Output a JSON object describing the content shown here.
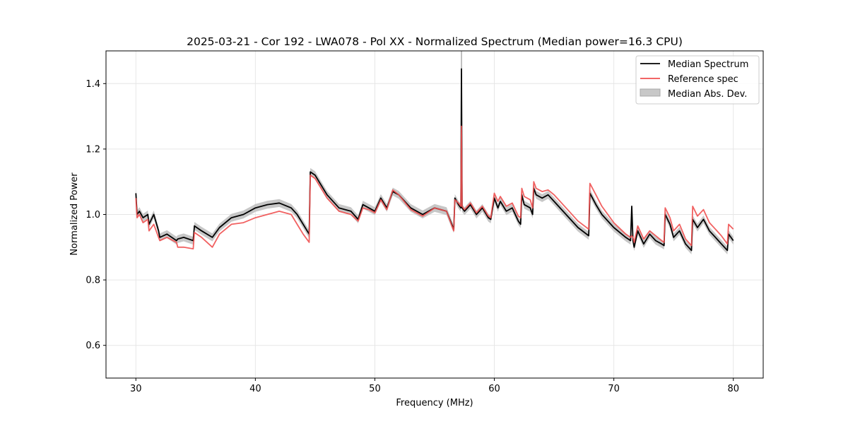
{
  "chart_data": {
    "type": "line",
    "title": "2025-03-21 - Cor 192 - LWA078 - Pol XX - Normalized Spectrum (Median power=16.3 CPU)",
    "xlabel": "Frequency (MHz)",
    "ylabel": "Normalized Power",
    "xlim": [
      27.5,
      82.5
    ],
    "ylim": [
      0.5,
      1.5
    ],
    "xticks": [
      30,
      40,
      50,
      60,
      70,
      80
    ],
    "yticks": [
      0.6,
      0.8,
      1.0,
      1.2,
      1.4
    ],
    "xtick_labels": [
      "30",
      "40",
      "50",
      "60",
      "70",
      "80"
    ],
    "ytick_labels": [
      "0.6",
      "0.8",
      "1.0",
      "1.2",
      "1.4"
    ],
    "grid": true,
    "legend_position": "top-right",
    "legend": [
      "Median Spectrum",
      "Reference spec",
      "Median Abs. Dev."
    ],
    "colors": {
      "median": "#000000",
      "reference": "#f05050",
      "mad": "#bdbdbd",
      "grid": "#e6e6e6"
    },
    "band_halfwidth": 0.012,
    "series": [
      {
        "name": "Median Spectrum",
        "x": [
          30.0,
          30.1,
          30.3,
          30.6,
          31.0,
          31.1,
          31.5,
          31.9,
          32.0,
          32.6,
          33.4,
          33.5,
          34.0,
          34.8,
          34.9,
          35.5,
          36.4,
          37.0,
          38.0,
          39.0,
          40.0,
          41.0,
          42.0,
          43.0,
          43.5,
          44.0,
          44.5,
          44.6,
          45.0,
          46.0,
          47.0,
          48.0,
          48.6,
          49.0,
          49.5,
          50.0,
          50.5,
          51.0,
          51.5,
          52.0,
          53.0,
          54.0,
          55.0,
          56.0,
          56.6,
          56.7,
          57.0,
          57.2,
          57.25,
          57.3,
          57.5,
          58.0,
          58.5,
          59.0,
          59.5,
          59.7,
          60.0,
          60.3,
          60.5,
          61.0,
          61.5,
          62.0,
          62.2,
          62.3,
          62.5,
          63.0,
          63.2,
          63.3,
          63.5,
          64.0,
          64.5,
          65.0,
          66.0,
          67.0,
          67.9,
          68.0,
          68.5,
          69.0,
          70.0,
          71.0,
          71.4,
          71.5,
          71.6,
          71.7,
          72.0,
          72.5,
          73.0,
          73.5,
          74.0,
          74.2,
          74.3,
          74.7,
          75.0,
          75.5,
          76.0,
          76.5,
          76.6,
          77.0,
          77.5,
          78.0,
          78.5,
          79.0,
          79.5,
          79.6,
          80.0
        ],
        "values": [
          1.065,
          1.0,
          1.01,
          0.99,
          1.0,
          0.97,
          1.0,
          0.95,
          0.93,
          0.94,
          0.92,
          0.925,
          0.93,
          0.92,
          0.965,
          0.95,
          0.93,
          0.96,
          0.99,
          1.0,
          1.02,
          1.03,
          1.035,
          1.02,
          1.0,
          0.97,
          0.94,
          1.13,
          1.12,
          1.06,
          1.02,
          1.01,
          0.985,
          1.03,
          1.02,
          1.01,
          1.05,
          1.02,
          1.07,
          1.06,
          1.02,
          1.0,
          1.02,
          1.01,
          0.955,
          1.05,
          1.03,
          1.02,
          1.445,
          1.02,
          1.01,
          1.03,
          1.0,
          1.02,
          0.99,
          0.985,
          1.05,
          1.02,
          1.04,
          1.01,
          1.02,
          0.98,
          0.97,
          1.06,
          1.03,
          1.02,
          1.0,
          1.08,
          1.06,
          1.05,
          1.06,
          1.04,
          1.0,
          0.96,
          0.935,
          1.065,
          1.03,
          1.0,
          0.96,
          0.93,
          0.92,
          1.025,
          0.92,
          0.9,
          0.95,
          0.91,
          0.94,
          0.92,
          0.91,
          0.905,
          1.0,
          0.97,
          0.93,
          0.95,
          0.91,
          0.89,
          0.985,
          0.96,
          0.985,
          0.95,
          0.93,
          0.91,
          0.89,
          0.94,
          0.92
        ]
      },
      {
        "name": "Reference spec",
        "x": [
          30.0,
          30.1,
          30.3,
          30.6,
          31.0,
          31.1,
          31.5,
          31.9,
          32.0,
          32.6,
          33.4,
          33.5,
          34.0,
          34.8,
          34.9,
          35.5,
          36.4,
          37.0,
          38.0,
          39.0,
          40.0,
          41.0,
          42.0,
          43.0,
          43.5,
          44.0,
          44.5,
          44.6,
          45.0,
          46.0,
          47.0,
          48.0,
          48.6,
          49.0,
          49.5,
          50.0,
          50.5,
          51.0,
          51.5,
          52.0,
          53.0,
          54.0,
          55.0,
          56.0,
          56.6,
          56.7,
          57.0,
          57.2,
          57.25,
          57.3,
          57.5,
          58.0,
          58.5,
          59.0,
          59.5,
          59.7,
          60.0,
          60.3,
          60.5,
          61.0,
          61.5,
          62.0,
          62.2,
          62.3,
          62.5,
          63.0,
          63.2,
          63.3,
          63.5,
          64.0,
          64.5,
          65.0,
          66.0,
          67.0,
          67.9,
          68.0,
          68.5,
          69.0,
          70.0,
          71.0,
          71.4,
          71.5,
          71.6,
          71.7,
          72.0,
          72.5,
          73.0,
          73.5,
          74.0,
          74.2,
          74.3,
          74.7,
          75.0,
          75.5,
          76.0,
          76.5,
          76.6,
          77.0,
          77.5,
          78.0,
          78.5,
          79.0,
          79.5,
          79.6,
          80.0
        ],
        "values": [
          1.05,
          0.99,
          1.0,
          0.975,
          0.985,
          0.95,
          0.97,
          0.93,
          0.92,
          0.93,
          0.915,
          0.9,
          0.9,
          0.895,
          0.945,
          0.93,
          0.9,
          0.94,
          0.97,
          0.975,
          0.99,
          1.0,
          1.01,
          1.0,
          0.97,
          0.94,
          0.915,
          1.12,
          1.11,
          1.05,
          1.01,
          1.0,
          0.98,
          1.02,
          1.015,
          1.005,
          1.045,
          1.015,
          1.075,
          1.06,
          1.015,
          0.995,
          1.02,
          1.01,
          0.95,
          1.045,
          1.035,
          1.025,
          1.27,
          1.025,
          1.015,
          1.035,
          1.005,
          1.025,
          0.995,
          0.99,
          1.065,
          1.04,
          1.055,
          1.025,
          1.035,
          0.995,
          0.99,
          1.08,
          1.055,
          1.045,
          1.02,
          1.1,
          1.08,
          1.07,
          1.075,
          1.06,
          1.02,
          0.98,
          0.955,
          1.095,
          1.06,
          1.025,
          0.975,
          0.94,
          0.93,
          0.935,
          0.93,
          0.915,
          0.965,
          0.925,
          0.95,
          0.935,
          0.92,
          0.915,
          1.02,
          0.99,
          0.95,
          0.97,
          0.925,
          0.905,
          1.025,
          0.995,
          1.015,
          0.975,
          0.955,
          0.935,
          0.91,
          0.97,
          0.955
        ]
      }
    ]
  }
}
